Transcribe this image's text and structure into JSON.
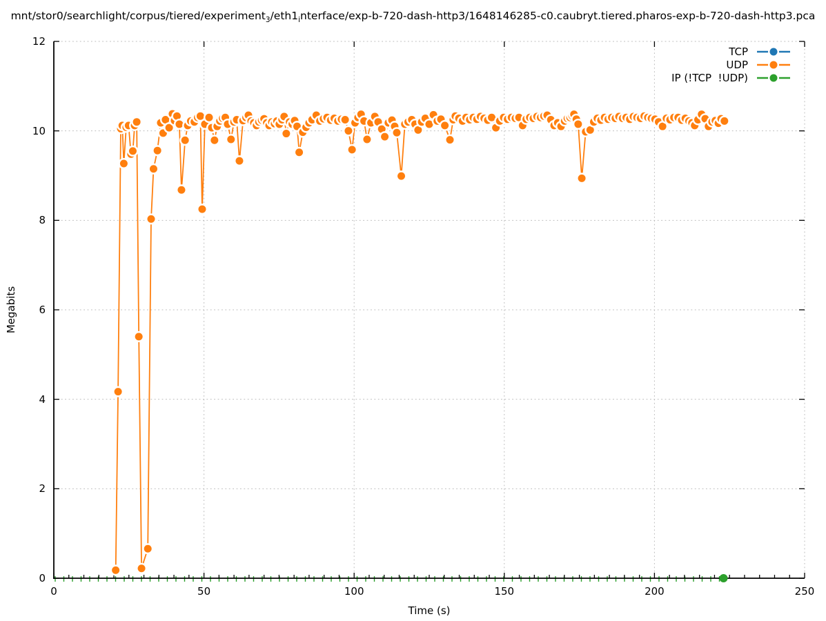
{
  "title": {
    "segments": [
      {
        "text": "mnt/stor0/searchlight/corpus/tiered/experiment",
        "sub": false
      },
      {
        "text": "3",
        "sub": true
      },
      {
        "text": "/eth1",
        "sub": false
      },
      {
        "text": "i",
        "sub": true
      },
      {
        "text": "nterface/exp-b-720-dash-http3/1648146285-c0.caubryt.tiered.pharos-exp-b-720-dash-http3.pca",
        "sub": false
      }
    ]
  },
  "axes": {
    "xlabel": "Time (s)",
    "ylabel": "Megabits"
  },
  "legend": {
    "items": [
      {
        "label": "TCP",
        "color": "#1f77b4"
      },
      {
        "label": "UDP",
        "color": "#ff7f0e"
      },
      {
        "label": "IP (!TCP  !UDP)",
        "color": "#2ca02c"
      }
    ]
  },
  "colors": {
    "tcp": "#1f77b4",
    "udp": "#ff7f0e",
    "ip_other": "#2ca02c",
    "grid": "#bbbbbb",
    "axis": "#000000",
    "background": "#ffffff"
  },
  "chart_data": {
    "type": "line",
    "xlabel": "Time (s)",
    "ylabel": "Megabits",
    "xlim": [
      0,
      250
    ],
    "ylim": [
      0,
      12
    ],
    "x_ticks": [
      0,
      50,
      100,
      150,
      200,
      250
    ],
    "y_ticks": [
      0,
      2,
      4,
      6,
      8,
      10,
      12
    ],
    "x_minor_tick_step": 5,
    "grid": true,
    "legend_position": "top-right-inside",
    "series": [
      {
        "name": "TCP",
        "color": "#1f77b4",
        "points": []
      },
      {
        "name": "UDP",
        "color": "#ff7f0e",
        "points": [
          [
            20.6,
            0.18
          ],
          [
            21.4,
            4.17
          ],
          [
            22.3,
            10.05
          ],
          [
            22.8,
            10.12
          ],
          [
            23.3,
            9.27
          ],
          [
            24.1,
            10.08
          ],
          [
            24.9,
            10.12
          ],
          [
            25.7,
            9.48
          ],
          [
            26.3,
            9.55
          ],
          [
            26.9,
            10.12
          ],
          [
            27.6,
            10.2
          ],
          [
            28.3,
            5.4
          ],
          [
            29.2,
            0.22
          ],
          [
            31.3,
            0.66
          ],
          [
            32.4,
            8.03
          ],
          [
            33.2,
            9.15
          ],
          [
            34.5,
            9.56
          ],
          [
            35.6,
            10.18
          ],
          [
            36.4,
            9.95
          ],
          [
            37.2,
            10.25
          ],
          [
            38.4,
            10.07
          ],
          [
            39.5,
            10.38
          ],
          [
            40.2,
            10.23
          ],
          [
            41,
            10.33
          ],
          [
            41.8,
            10.15
          ],
          [
            42.5,
            8.68
          ],
          [
            43.7,
            9.79
          ],
          [
            44.6,
            10.12
          ],
          [
            45.6,
            10.22
          ],
          [
            46.8,
            10.2
          ],
          [
            47.9,
            10.3
          ],
          [
            48.8,
            10.33
          ],
          [
            49.4,
            8.25
          ],
          [
            50.3,
            10.15
          ],
          [
            51.7,
            10.3
          ],
          [
            52.6,
            10.07
          ],
          [
            53.5,
            9.79
          ],
          [
            54.4,
            10.1
          ],
          [
            55.3,
            10.22
          ],
          [
            56.2,
            10.28
          ],
          [
            57.1,
            10.3
          ],
          [
            57.9,
            10.15
          ],
          [
            59,
            9.81
          ],
          [
            60,
            10.2
          ],
          [
            60.9,
            10.25
          ],
          [
            61.8,
            9.33
          ],
          [
            63,
            10.23
          ],
          [
            64,
            10.3
          ],
          [
            64.8,
            10.35
          ],
          [
            65.7,
            10.22
          ],
          [
            66.6,
            10.18
          ],
          [
            67.5,
            10.12
          ],
          [
            68.3,
            10.2
          ],
          [
            69.2,
            10.24
          ],
          [
            70,
            10.27
          ],
          [
            70.9,
            10.18
          ],
          [
            71.7,
            10.12
          ],
          [
            72.6,
            10.2
          ],
          [
            73.5,
            10.16
          ],
          [
            74.3,
            10.22
          ],
          [
            75.1,
            10.15
          ],
          [
            76,
            10.25
          ],
          [
            76.7,
            10.32
          ],
          [
            77.4,
            9.94
          ],
          [
            78.5,
            10.2
          ],
          [
            79.4,
            10.15
          ],
          [
            80.2,
            10.23
          ],
          [
            81,
            10.1
          ],
          [
            81.7,
            9.52
          ],
          [
            82.9,
            9.97
          ],
          [
            84,
            10.08
          ],
          [
            85,
            10.18
          ],
          [
            86,
            10.25
          ],
          [
            87.4,
            10.35
          ],
          [
            88.6,
            10.22
          ],
          [
            89.8,
            10.27
          ],
          [
            91,
            10.3
          ],
          [
            92.2,
            10.24
          ],
          [
            93.4,
            10.28
          ],
          [
            94.6,
            10.22
          ],
          [
            95.8,
            10.26
          ],
          [
            97,
            10.25
          ],
          [
            98.1,
            10
          ],
          [
            99.3,
            9.58
          ],
          [
            100.3,
            10.18
          ],
          [
            101.3,
            10.3
          ],
          [
            102.3,
            10.37
          ],
          [
            103.3,
            10.22
          ],
          [
            104.3,
            9.81
          ],
          [
            105.6,
            10.18
          ],
          [
            106.9,
            10.32
          ],
          [
            108,
            10.2
          ],
          [
            109.2,
            10.04
          ],
          [
            110.2,
            9.87
          ],
          [
            111.4,
            10.18
          ],
          [
            112.6,
            10.24
          ],
          [
            113.5,
            10.1
          ],
          [
            114.2,
            9.96
          ],
          [
            115.7,
            8.99
          ],
          [
            116.9,
            10.15
          ],
          [
            118,
            10.2
          ],
          [
            119.2,
            10.25
          ],
          [
            120.3,
            10.15
          ],
          [
            121.3,
            10.02
          ],
          [
            122.5,
            10.2
          ],
          [
            123.7,
            10.28
          ],
          [
            125,
            10.15
          ],
          [
            126.4,
            10.36
          ],
          [
            127.7,
            10.22
          ],
          [
            128.9,
            10.26
          ],
          [
            130.2,
            10.12
          ],
          [
            131.9,
            9.8
          ],
          [
            133,
            10.25
          ],
          [
            133.7,
            10.33
          ],
          [
            134.9,
            10.28
          ],
          [
            136.1,
            10.22
          ],
          [
            137.3,
            10.3
          ],
          [
            138.5,
            10.25
          ],
          [
            139.7,
            10.3
          ],
          [
            140.9,
            10.26
          ],
          [
            142.1,
            10.32
          ],
          [
            143.3,
            10.28
          ],
          [
            144.5,
            10.24
          ],
          [
            145.8,
            10.3
          ],
          [
            147.2,
            10.07
          ],
          [
            148.5,
            10.22
          ],
          [
            149.8,
            10.3
          ],
          [
            151.1,
            10.26
          ],
          [
            152.4,
            10.3
          ],
          [
            153.7,
            10.28
          ],
          [
            154.9,
            10.3
          ],
          [
            156.1,
            10.12
          ],
          [
            157.3,
            10.26
          ],
          [
            158.5,
            10.3
          ],
          [
            159.7,
            10.28
          ],
          [
            160.9,
            10.32
          ],
          [
            162.1,
            10.3
          ],
          [
            163.2,
            10.33
          ],
          [
            164.3,
            10.35
          ],
          [
            165.5,
            10.25
          ],
          [
            166.6,
            10.12
          ],
          [
            167.8,
            10.18
          ],
          [
            168.9,
            10.1
          ],
          [
            170.1,
            10.22
          ],
          [
            171,
            10.28
          ],
          [
            171.9,
            10.3
          ],
          [
            172.6,
            10.34
          ],
          [
            173.2,
            10.37
          ],
          [
            174,
            10.26
          ],
          [
            174.6,
            10.15
          ],
          [
            175.8,
            8.94
          ],
          [
            177.1,
            9.98
          ],
          [
            178.6,
            10.02
          ],
          [
            179.8,
            10.2
          ],
          [
            181,
            10.28
          ],
          [
            182.2,
            10.24
          ],
          [
            183.4,
            10.3
          ],
          [
            184.6,
            10.26
          ],
          [
            185.8,
            10.3
          ],
          [
            187,
            10.28
          ],
          [
            188.2,
            10.32
          ],
          [
            189.4,
            10.28
          ],
          [
            190.6,
            10.3
          ],
          [
            191.8,
            10.26
          ],
          [
            193,
            10.32
          ],
          [
            194.2,
            10.3
          ],
          [
            195.4,
            10.28
          ],
          [
            196.6,
            10.33
          ],
          [
            197.8,
            10.3
          ],
          [
            199,
            10.28
          ],
          [
            200.2,
            10.26
          ],
          [
            201.4,
            10.2
          ],
          [
            202.7,
            10.1
          ],
          [
            204,
            10.28
          ],
          [
            205.2,
            10.25
          ],
          [
            206.5,
            10.3
          ],
          [
            207.9,
            10.3
          ],
          [
            209.1,
            10.24
          ],
          [
            210.3,
            10.28
          ],
          [
            211.5,
            10.22
          ],
          [
            212.5,
            10.18
          ],
          [
            213.4,
            10.12
          ],
          [
            214.5,
            10.25
          ],
          [
            215.7,
            10.37
          ],
          [
            216.9,
            10.27
          ],
          [
            218,
            10.1
          ],
          [
            219.2,
            10.2
          ],
          [
            220.3,
            10.23
          ],
          [
            221.3,
            10.17
          ],
          [
            222.2,
            10.27
          ],
          [
            223.3,
            10.22
          ]
        ]
      },
      {
        "name": "IP (!TCP  !UDP)",
        "color": "#2ca02c",
        "style": "dashed-marks-along-axis",
        "points": [
          [
            0,
            0
          ],
          [
            223,
            0
          ]
        ],
        "end_marker": [
          223,
          0
        ]
      }
    ]
  }
}
